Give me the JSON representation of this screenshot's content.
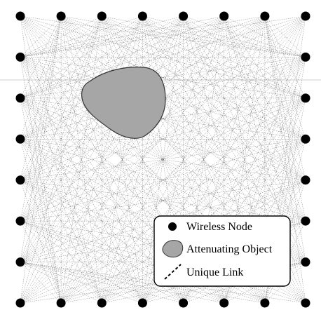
{
  "diagram": {
    "grid": {
      "columns": 8,
      "rows": 8
    },
    "colors": {
      "node": "#000000",
      "link": "#555555",
      "object_fill": "#a6a6a6",
      "object_stroke": "#333333",
      "legend_border": "#000000",
      "background": "#ffffff"
    },
    "legend": {
      "items": [
        {
          "key": "node",
          "label": "Wireless Node"
        },
        {
          "key": "object",
          "label": "Attenuating Object"
        },
        {
          "key": "link",
          "label": "Unique Link"
        }
      ]
    }
  }
}
